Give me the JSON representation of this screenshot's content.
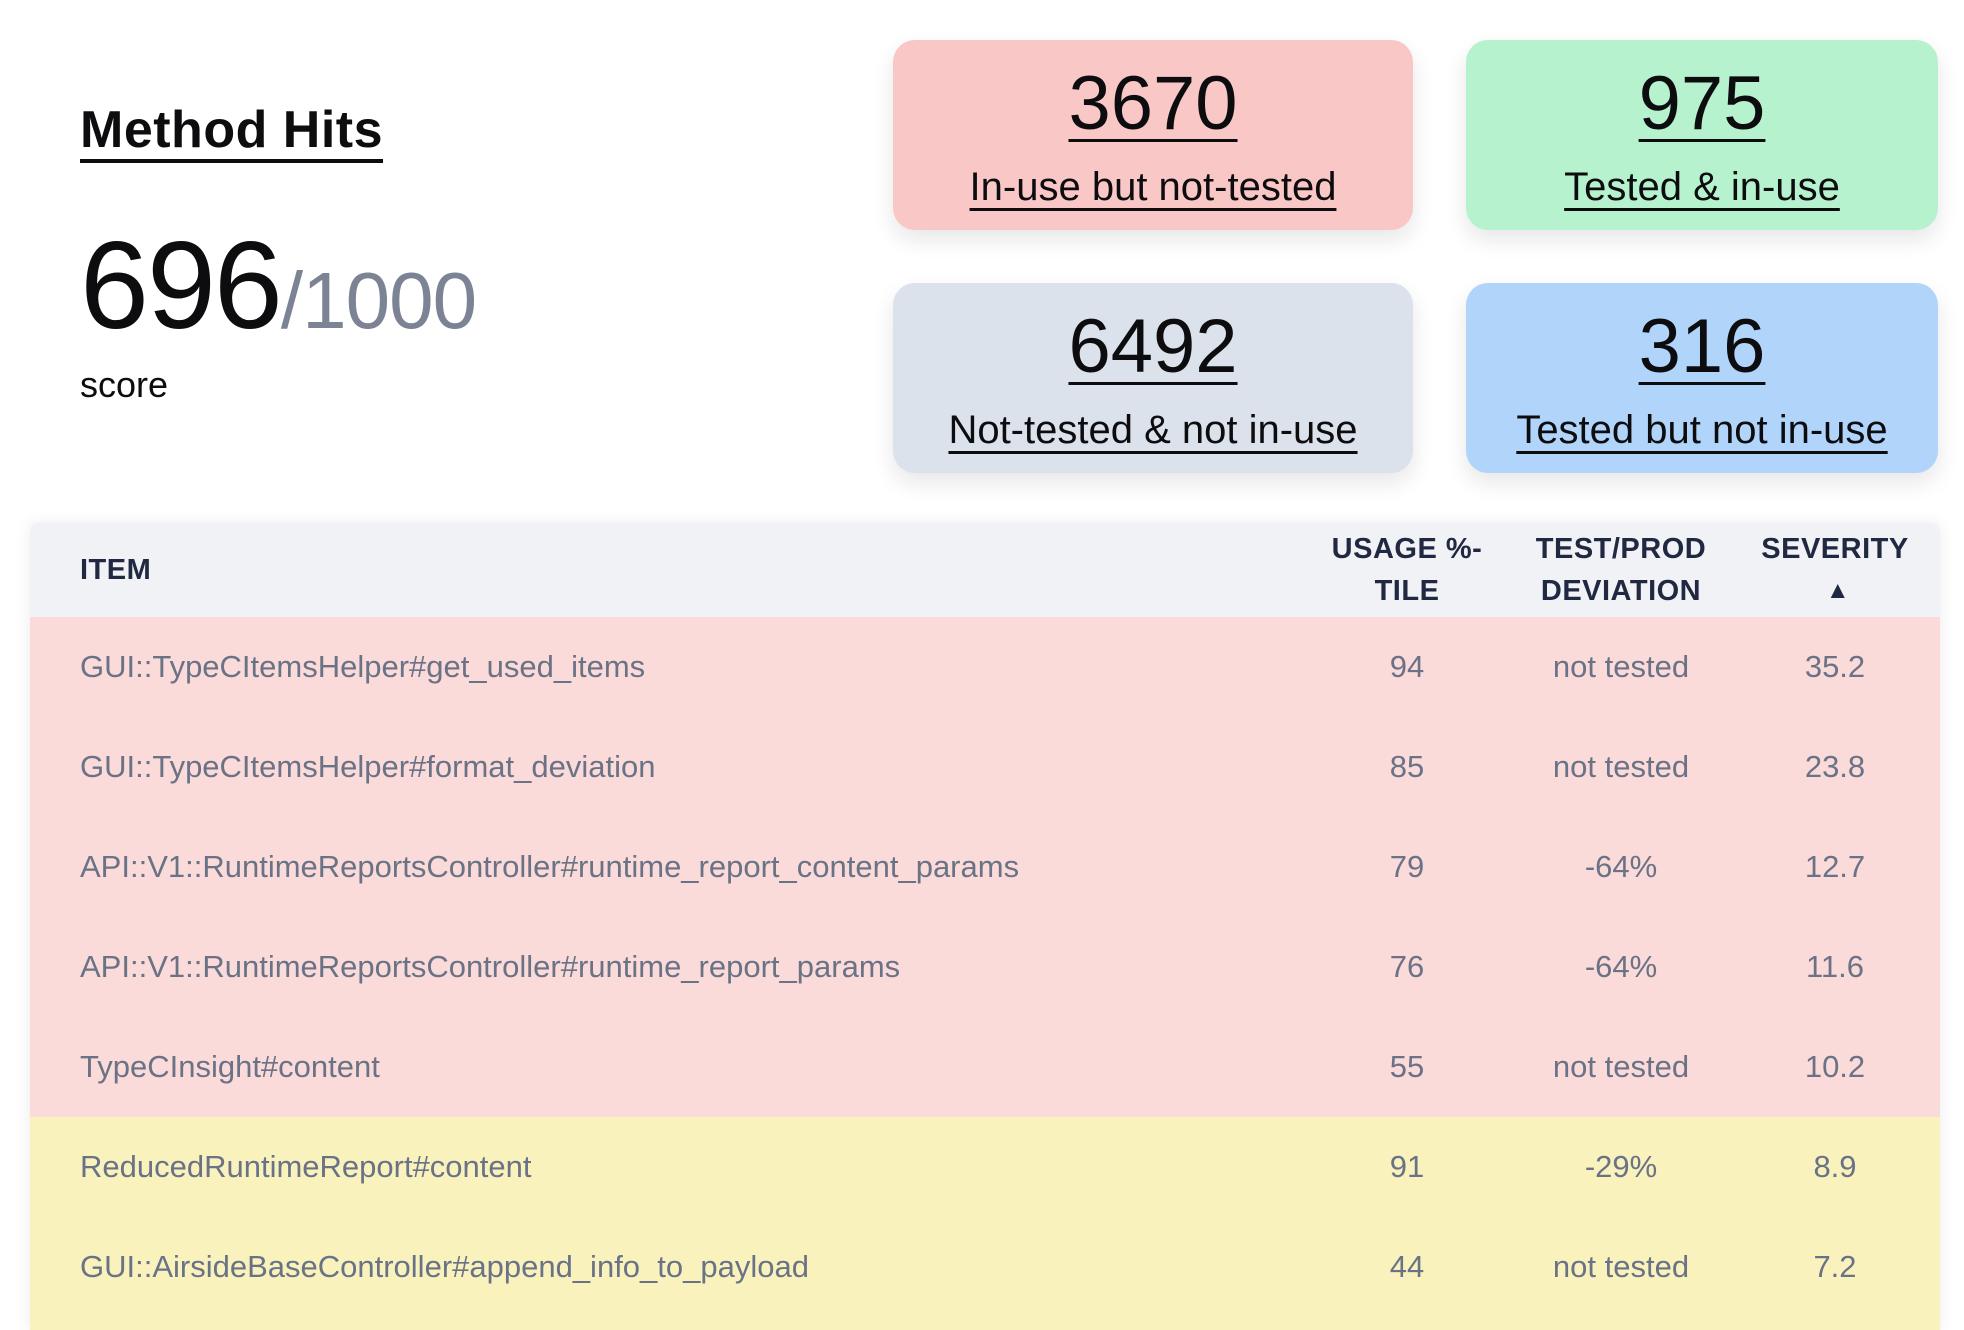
{
  "colors": {
    "page-bg": "#ffffff",
    "text-primary": "#0d0d10",
    "text-muted": "#7b8395",
    "card-red": "#fac7c7",
    "card-green": "#b5f2cd",
    "card-gray": "#dbe2eb",
    "card-blue": "#b1d4fa",
    "thead-bg": "#f1f2f5",
    "thead-text": "#212842",
    "row-pink": "#fbdada",
    "row-yellow": "#faf2bd",
    "row-text": "#6a7385"
  },
  "summary": {
    "title": "Method Hits",
    "score_value": "696",
    "score_total": "/1000",
    "score_caption": "score"
  },
  "stat_cards": [
    {
      "value": "3670",
      "label": "In-use but not-tested"
    },
    {
      "value": "975",
      "label": "Tested & in-use"
    },
    {
      "value": "6492",
      "label": "Not-tested & not in-use"
    },
    {
      "value": "316",
      "label": "Tested but not in-use"
    }
  ],
  "table": {
    "columns": {
      "item": "ITEM",
      "usage": "USAGE %-\nTILE",
      "deviation": "TEST/PROD\nDEVIATION",
      "severity": "SEVERITY",
      "sort_icon": "▲"
    },
    "rows": [
      {
        "item": "GUI::TypeCItemsHelper#get_used_items",
        "usage": "94",
        "deviation": "not tested",
        "severity": "35.2"
      },
      {
        "item": "GUI::TypeCItemsHelper#format_deviation",
        "usage": "85",
        "deviation": "not tested",
        "severity": "23.8"
      },
      {
        "item": "API::V1::RuntimeReportsController#runtime_report_content_params",
        "usage": "79",
        "deviation": "-64%",
        "severity": "12.7"
      },
      {
        "item": "API::V1::RuntimeReportsController#runtime_report_params",
        "usage": "76",
        "deviation": "-64%",
        "severity": "11.6"
      },
      {
        "item": "TypeCInsight#content",
        "usage": "55",
        "deviation": "not tested",
        "severity": "10.2"
      },
      {
        "item": "ReducedRuntimeReport#content",
        "usage": "91",
        "deviation": "-29%",
        "severity": "8.9"
      },
      {
        "item": "GUI::AirsideBaseController#append_info_to_payload",
        "usage": "44",
        "deviation": "not tested",
        "severity": "7.2"
      }
    ]
  }
}
